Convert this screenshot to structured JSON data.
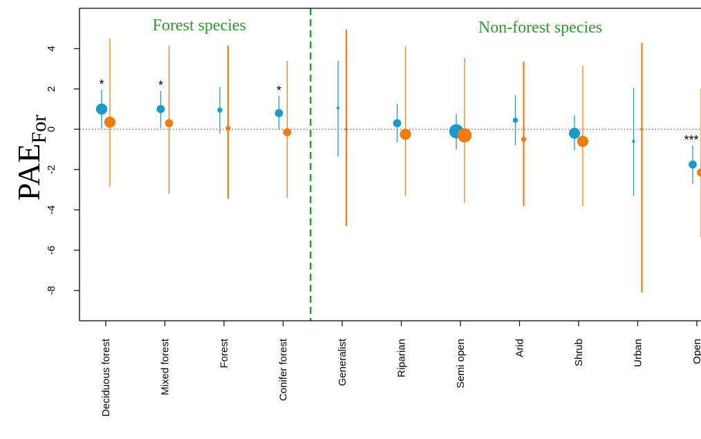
{
  "chart_data": {
    "type": "scatter",
    "ylabel_main": "PAE",
    "ylabel_sub": "For",
    "ylim": [
      -9.5,
      6
    ],
    "yticks": [
      4,
      2,
      0,
      -2,
      -4,
      -6,
      -8
    ],
    "reference_line": 0,
    "groups": [
      {
        "label": "Forest species",
        "categories": [
          "Deciduous forest",
          "Mixed forest",
          "Forest",
          "Conifer forest"
        ]
      },
      {
        "label": "Non-forest species",
        "categories": [
          "Generalist",
          "Riparian",
          "Semi open",
          "Arid",
          "Shrub",
          "Urban",
          "Open"
        ]
      }
    ],
    "categories": [
      "Deciduous forest",
      "Mixed forest",
      "Forest",
      "Conifer forest",
      "Generalist",
      "Riparian",
      "Semi open",
      "Arid",
      "Shrub",
      "Urban",
      "Open"
    ],
    "colors": {
      "series_1": "#1a9ac9",
      "series_2": "#ee7d11",
      "group_divider": "#2e9a2e",
      "group_label": "#2e9a2e"
    },
    "series": [
      {
        "color": "#1a9ac9",
        "estimates": [
          1.0,
          1.0,
          0.95,
          0.8,
          1.05,
          0.3,
          -0.1,
          0.45,
          -0.2,
          -0.6,
          -1.75
        ],
        "lower": [
          0.05,
          0.05,
          -0.2,
          0.0,
          -1.35,
          -0.65,
          -1.0,
          -0.8,
          -1.05,
          -3.3,
          -2.7
        ],
        "upper": [
          1.95,
          1.9,
          2.1,
          1.65,
          3.4,
          1.25,
          0.75,
          1.7,
          0.7,
          2.05,
          -0.8
        ],
        "point_size": [
          3,
          2,
          1,
          2,
          0.3,
          2,
          4,
          1,
          3,
          0.3,
          2
        ]
      },
      {
        "color": "#ee7d11",
        "estimates": [
          0.35,
          0.3,
          0.05,
          -0.15,
          0.0,
          -0.25,
          -0.3,
          -0.5,
          -0.6,
          0.0,
          -2.15
        ],
        "lower": [
          -2.85,
          -3.2,
          -3.45,
          -3.4,
          -4.8,
          -3.3,
          -3.65,
          -3.8,
          -3.8,
          -8.1,
          -5.35
        ],
        "upper": [
          4.5,
          4.15,
          4.15,
          3.4,
          4.95,
          4.1,
          3.55,
          3.35,
          3.15,
          4.3,
          2.0
        ],
        "point_size": [
          3,
          2,
          1,
          2,
          0.3,
          3,
          4,
          1,
          3,
          0.3,
          2
        ]
      }
    ],
    "significance": [
      "*",
      "*",
      "",
      "*",
      "",
      "",
      "",
      "",
      "",
      "",
      "***"
    ]
  }
}
